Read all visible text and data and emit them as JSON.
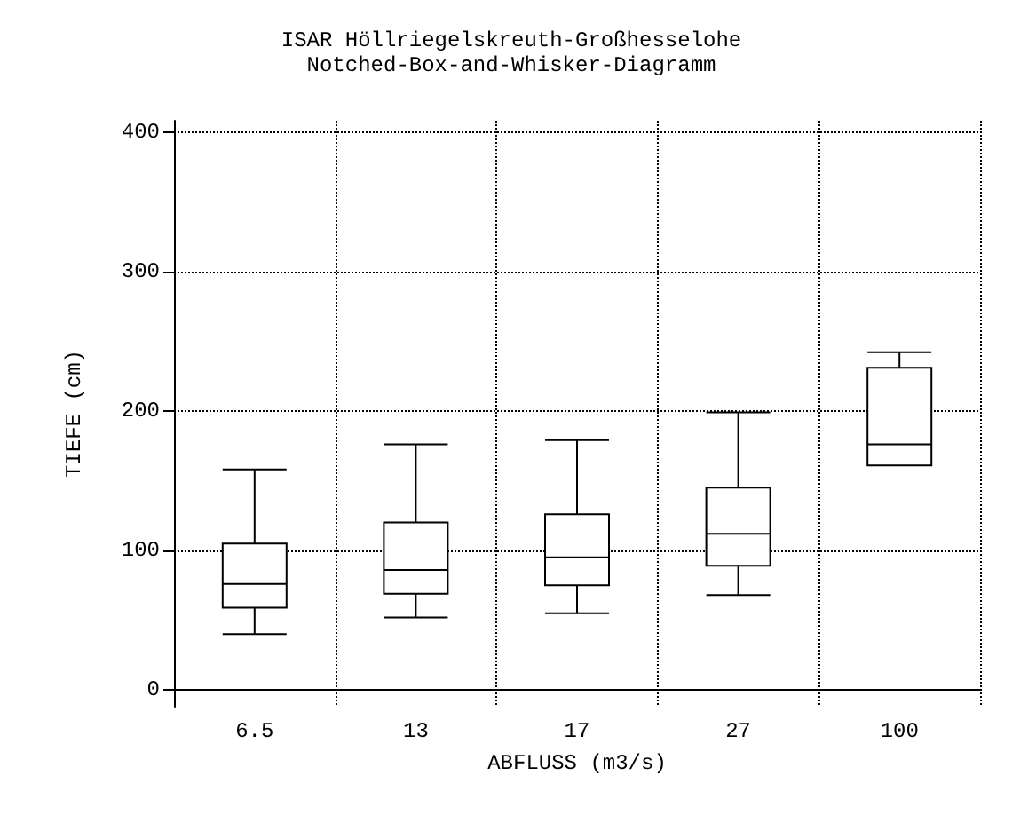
{
  "chart_data": {
    "type": "box",
    "title": "ISAR Höllriegelskreuth-Großhesselohe",
    "subtitle": "Notched-Box-and-Whisker-Diagramm",
    "xlabel": "ABFLUSS (m3/s)",
    "ylabel": "TIEFE (cm)",
    "categories": [
      "6.5",
      "13",
      "17",
      "27",
      "100"
    ],
    "boxes": [
      {
        "low": 40,
        "q1": 59,
        "median": 76,
        "q3": 105,
        "high": 158
      },
      {
        "low": 52,
        "q1": 69,
        "median": 86,
        "q3": 120,
        "high": 176
      },
      {
        "low": 55,
        "q1": 75,
        "median": 95,
        "q3": 126,
        "high": 179
      },
      {
        "low": 68,
        "q1": 89,
        "median": 112,
        "q3": 145,
        "high": 199
      },
      {
        "low": 161,
        "q1": 161,
        "median": 176,
        "q3": 231,
        "high": 242
      }
    ],
    "color": "#000000",
    "ylim": [
      -12,
      408
    ],
    "yticks": [
      0,
      100,
      200,
      300,
      400
    ],
    "grid": true
  }
}
